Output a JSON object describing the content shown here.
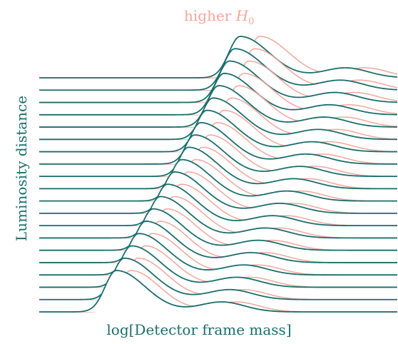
{
  "chart_data": {
    "type": "line",
    "subtype": "ridgeline",
    "xlabel": "log[Detector frame mass]",
    "ylabel": "Luminosity distance",
    "annotation": {
      "text": "higher",
      "symbol": "H",
      "subscript": "0"
    },
    "ridges": 20,
    "distance_fractions": [
      0.0,
      0.0526,
      0.1053,
      0.1579,
      0.2105,
      0.2632,
      0.3158,
      0.3684,
      0.4211,
      0.4737,
      0.5263,
      0.5789,
      0.6316,
      0.6842,
      0.7368,
      0.7895,
      0.8421,
      0.8947,
      0.9474,
      1.0
    ],
    "series": [
      {
        "name": "",
        "color": "#1b6e6c",
        "peak_log_mass": [
          0.215,
          0.237,
          0.257,
          0.277,
          0.297,
          0.317,
          0.337,
          0.357,
          0.377,
          0.397,
          0.416,
          0.433,
          0.45,
          0.467,
          0.484,
          0.5,
          0.515,
          0.53,
          0.545,
          0.56
        ],
        "peak_width": 0.07,
        "secondary_offset": 0.5,
        "secondary_amplitude": 0.06
      },
      {
        "name": "",
        "color": "#f2a79b",
        "peak_log_mass": [
          0.255,
          0.275,
          0.295,
          0.315,
          0.335,
          0.355,
          0.375,
          0.395,
          0.415,
          0.435,
          0.455,
          0.475,
          0.495,
          0.515,
          0.535,
          0.555,
          0.57,
          0.585,
          0.6,
          0.615
        ],
        "peak_width": 0.07,
        "secondary_offset": 0.5,
        "secondary_amplitude": 0.06
      }
    ],
    "xlim": [
      0,
      1
    ],
    "axes_visible": false,
    "grid": false
  }
}
